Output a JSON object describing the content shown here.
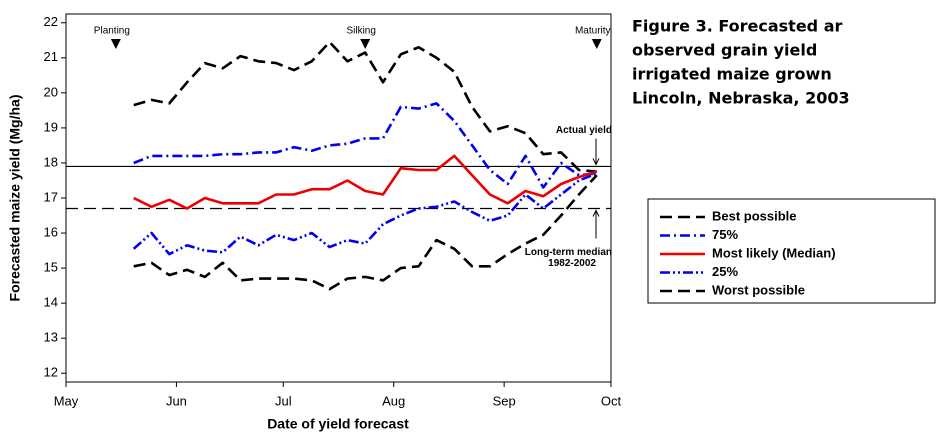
{
  "chart_data": {
    "type": "line",
    "caption": [
      "Figure 3. Forecasted ar",
      "observed grain yield",
      "irrigated maize grown",
      "Lincoln, Nebraska, 2003"
    ],
    "xlabel": "Date of yield forecast",
    "ylabel": "Forecasted maize yield (Mg/ha)",
    "x": [
      140,
      145,
      150,
      155,
      160,
      165,
      170,
      175,
      180,
      185,
      190,
      195,
      200,
      205,
      210,
      215,
      220,
      225,
      230,
      235,
      240,
      245,
      250,
      255,
      260,
      265,
      270
    ],
    "series": [
      {
        "name": "Best possible",
        "color": "#000000",
        "style": "dashed",
        "values": [
          19.65,
          19.8,
          19.7,
          20.3,
          20.85,
          20.7,
          21.05,
          20.9,
          20.85,
          20.65,
          20.9,
          21.45,
          20.9,
          21.15,
          20.3,
          21.1,
          21.3,
          21.0,
          20.6,
          19.6,
          18.9,
          19.05,
          18.85,
          18.25,
          18.3,
          17.8,
          17.75
        ]
      },
      {
        "name": "75%",
        "color": "#0000ee",
        "style": "dashdot",
        "values": [
          18.0,
          18.2,
          18.2,
          18.2,
          18.2,
          18.25,
          18.25,
          18.3,
          18.3,
          18.45,
          18.35,
          18.5,
          18.55,
          18.7,
          18.7,
          19.6,
          19.55,
          19.7,
          19.2,
          18.5,
          17.8,
          17.4,
          18.2,
          17.3,
          18.0,
          17.65,
          17.7
        ]
      },
      {
        "name": "Most likely (Median)",
        "color": "#ee0000",
        "style": "solid",
        "values": [
          17.0,
          16.75,
          16.95,
          16.7,
          17.0,
          16.85,
          16.85,
          16.85,
          17.1,
          17.1,
          17.25,
          17.25,
          17.5,
          17.2,
          17.1,
          17.85,
          17.8,
          17.8,
          18.2,
          17.65,
          17.1,
          16.85,
          17.2,
          17.05,
          17.4,
          17.6,
          17.75
        ]
      },
      {
        "name": "25%",
        "color": "#0000ee",
        "style": "dashdotdot",
        "values": [
          15.55,
          16.0,
          15.4,
          15.65,
          15.5,
          15.45,
          15.9,
          15.65,
          15.95,
          15.8,
          16.0,
          15.6,
          15.8,
          15.7,
          16.25,
          16.5,
          16.7,
          16.75,
          16.9,
          16.6,
          16.35,
          16.5,
          17.1,
          16.7,
          17.1,
          17.5,
          17.7
        ]
      },
      {
        "name": "Worst possible",
        "color": "#000000",
        "style": "dashed",
        "values": [
          15.05,
          15.15,
          14.8,
          14.95,
          14.75,
          15.15,
          14.65,
          14.7,
          14.7,
          14.7,
          14.65,
          14.4,
          14.7,
          14.75,
          14.65,
          15.0,
          15.05,
          15.8,
          15.55,
          15.05,
          15.05,
          15.4,
          15.7,
          15.95,
          16.5,
          17.1,
          17.65
        ]
      }
    ],
    "reference_lines": [
      {
        "label": "Actual yield",
        "value": 17.9,
        "style": "solid"
      },
      {
        "label": "Long-term median",
        "sublabel": "1982-2002",
        "value": 16.7,
        "style": "dashed"
      }
    ],
    "stages": [
      {
        "label": "Planting",
        "x": 135
      },
      {
        "label": "Silking",
        "x": 205
      },
      {
        "label": "Maturity",
        "x": 270
      }
    ],
    "xlim": [
      121,
      274
    ],
    "xticks": [
      {
        "value": 121,
        "label": "May"
      },
      {
        "value": 152,
        "label": "Jun"
      },
      {
        "value": 182,
        "label": "Jul"
      },
      {
        "value": 213,
        "label": "Aug"
      },
      {
        "value": 244,
        "label": "Sep"
      },
      {
        "value": 274,
        "label": "Oct"
      }
    ],
    "ylim": [
      11.75,
      22.25
    ],
    "yticks": [
      12,
      13,
      14,
      15,
      16,
      17,
      18,
      19,
      20,
      21,
      22
    ],
    "grid": false
  }
}
